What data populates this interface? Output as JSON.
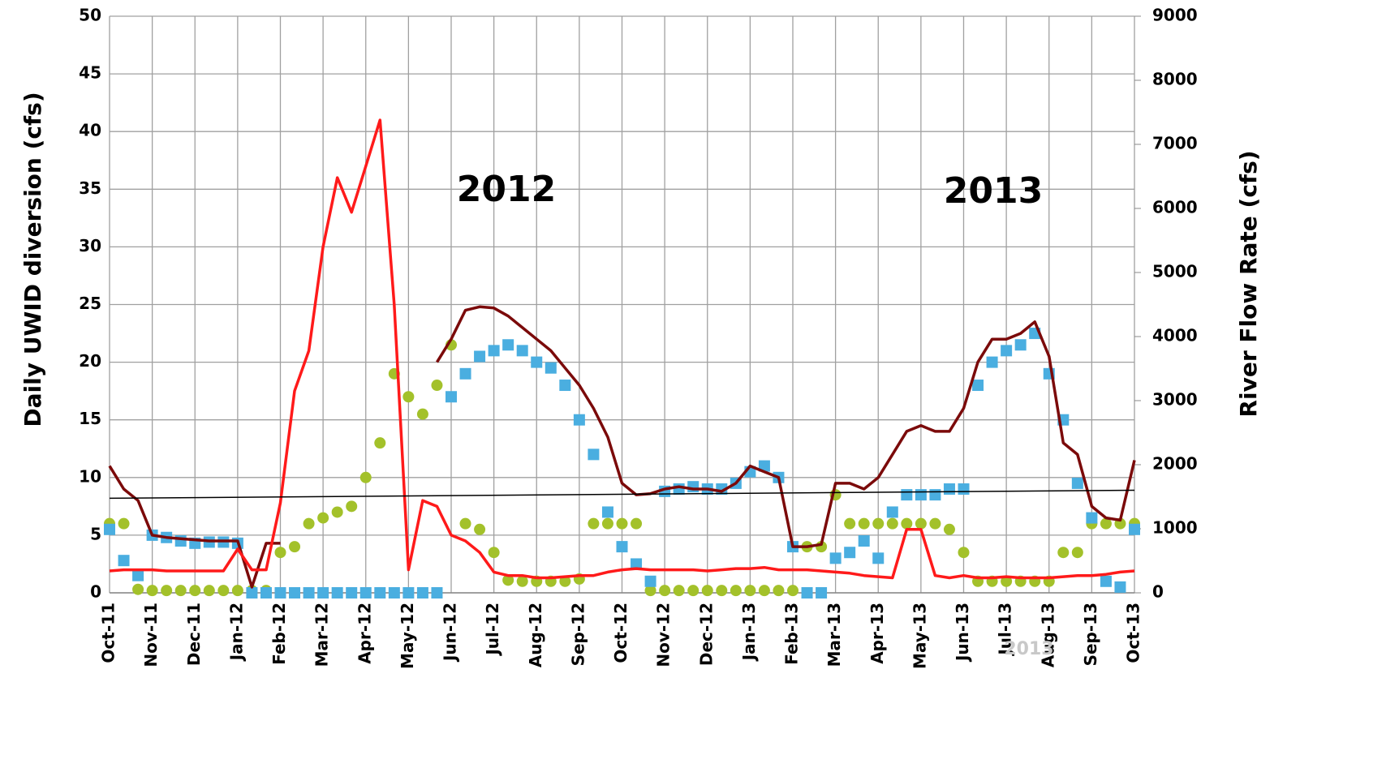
{
  "chart_data": {
    "type": "line",
    "y_label": "Daily UWID diversion (cfs)",
    "y2_label": "River Flow Rate (cfs)",
    "annotations": [
      {
        "text": "2012"
      },
      {
        "text": "2013"
      },
      {
        "text": "2013"
      }
    ],
    "categories": [
      "Oct-11",
      null,
      null,
      "Nov-11",
      null,
      null,
      "Dec-11",
      null,
      null,
      "Jan-12",
      null,
      null,
      "Feb-12",
      null,
      null,
      "Mar-12",
      null,
      null,
      "Apr-12",
      null,
      null,
      "May-12",
      null,
      null,
      "Jun-12",
      null,
      null,
      "Jul-12",
      null,
      null,
      "Aug-12",
      null,
      null,
      "Sep-12",
      null,
      null,
      "Oct-12",
      null,
      null,
      "Nov-12",
      null,
      null,
      "Dec-12",
      null,
      null,
      "Jan-13",
      null,
      null,
      "Feb-13",
      null,
      null,
      "Mar-13",
      null,
      null,
      "Apr-13",
      null,
      null,
      "May-13",
      null,
      null,
      "Jun-13",
      null,
      null,
      "Jul-13",
      null,
      null,
      "Aug-13",
      null,
      null,
      "Sep-13",
      null,
      null,
      "Oct-13"
    ],
    "ylim": [
      0,
      50
    ],
    "yticks": [
      0,
      5,
      10,
      15,
      20,
      25,
      30,
      35,
      40,
      45,
      50
    ],
    "y2lim": [
      0,
      9000
    ],
    "y2ticks": [
      0,
      1000,
      2000,
      3000,
      4000,
      5000,
      6000,
      7000,
      8000,
      9000
    ],
    "grid": true,
    "series": [
      {
        "type": "scatter",
        "marker": "circle",
        "color": "#a3c12a",
        "values": [
          6,
          6,
          0.3,
          0.2,
          0.2,
          0.2,
          0.2,
          0.2,
          0.2,
          0.2,
          0.2,
          0.2,
          3.5,
          4,
          6,
          6.5,
          7,
          7.5,
          10,
          13,
          19,
          17,
          15.5,
          18,
          21.5,
          6,
          5.5,
          3.5,
          1.1,
          1,
          1,
          1,
          1,
          1.2,
          6,
          6,
          6,
          6,
          0.2,
          0.2,
          0.2,
          0.2,
          0.2,
          0.2,
          0.2,
          0.2,
          0.2,
          0.2,
          0.2,
          4,
          4,
          8.5,
          6,
          6,
          6,
          6,
          6,
          6,
          6,
          5.5,
          3.5,
          1,
          1,
          1,
          1,
          1,
          1,
          3.5,
          3.5,
          6,
          6,
          6,
          6
        ]
      },
      {
        "type": "scatter",
        "marker": "square",
        "color": "#4aaee0",
        "values": [
          5.5,
          2.8,
          1.5,
          5,
          4.8,
          4.5,
          4.3,
          4.4,
          4.4,
          4.3,
          0,
          0,
          0,
          0,
          0,
          0,
          0,
          0,
          0,
          0,
          0,
          0,
          0,
          0,
          17,
          19,
          20.5,
          21,
          21.5,
          21,
          20,
          19.5,
          18,
          15,
          12,
          7,
          4,
          2.5,
          1,
          8.8,
          9,
          9.2,
          9,
          9,
          9.5,
          10.5,
          11,
          10,
          4,
          0,
          0,
          3,
          3.5,
          4.5,
          3,
          7,
          8.5,
          8.5,
          8.5,
          9,
          9,
          18,
          20,
          21,
          21.5,
          22.5,
          19,
          15,
          9.5,
          6.5,
          1,
          0.5,
          5.5
        ]
      },
      {
        "type": "line",
        "color": "#7b0a0a",
        "values": [
          11,
          9,
          8,
          5,
          4.8,
          4.7,
          4.6,
          4.5,
          4.5,
          4.5,
          0.5,
          4.3,
          4.3,
          null,
          null,
          null,
          null,
          null,
          null,
          null,
          null,
          null,
          null,
          20,
          22,
          24.5,
          24.8,
          24.7,
          24,
          23,
          22,
          21,
          19.5,
          18,
          16,
          13.5,
          9.5,
          8.5,
          8.6,
          9,
          9.2,
          9,
          9,
          8.8,
          9.5,
          11,
          10.5,
          10,
          4,
          4,
          4.2,
          9.5,
          9.5,
          9,
          10,
          12,
          14,
          14.5,
          14,
          14,
          16,
          20,
          22,
          22,
          22.5,
          23.5,
          20.5,
          13,
          12,
          7.5,
          6.5,
          6.3,
          11.5
        ]
      },
      {
        "type": "line",
        "axis": "y2",
        "color": "#ff1a1a",
        "values": [
          342,
          360,
          360,
          360,
          342,
          342,
          342,
          342,
          342,
          684,
          360,
          360,
          1404,
          3150,
          3780,
          5400,
          6480,
          5940,
          6660,
          7380,
          4500,
          360,
          1440,
          1350,
          900,
          810,
          630,
          324,
          270,
          270,
          234,
          234,
          252,
          270,
          270,
          324,
          360,
          378,
          360,
          360,
          360,
          360,
          342,
          360,
          378,
          378,
          396,
          360,
          360,
          360,
          342,
          324,
          306,
          270,
          252,
          234,
          990,
          990,
          270,
          234,
          270,
          234,
          234,
          252,
          234,
          234,
          234,
          252,
          270,
          270,
          288,
          324,
          342
        ]
      }
    ],
    "trendline": {
      "color": "#000000",
      "values": [
        8.2,
        8.9
      ]
    }
  }
}
